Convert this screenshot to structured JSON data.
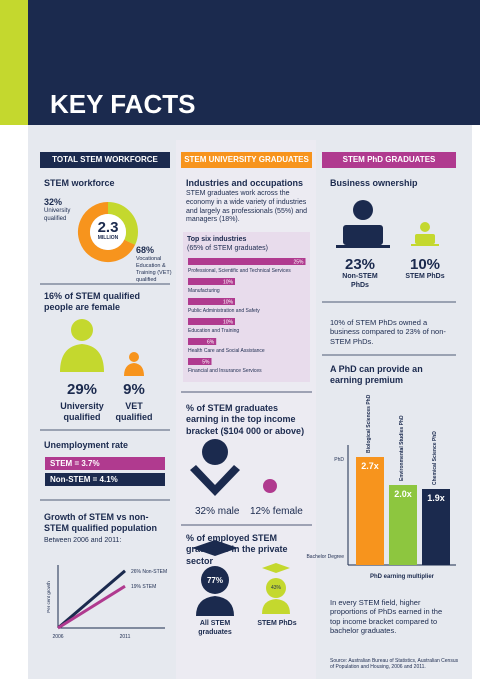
{
  "header": {
    "title": "KEY FACTS"
  },
  "workforce": {
    "heading": "TOTAL STEM WORKFORCE",
    "subheading": "STEM workforce",
    "university": {
      "value": 32,
      "label": "32%"
    },
    "university_text": "University qualified",
    "center_value": "2.3",
    "center_unit": "MILLION",
    "vet": {
      "value": 68,
      "label": "68%"
    },
    "vet_text": "Vocational Education & Training (VET) qualified"
  },
  "female": {
    "heading": "16% of STEM qualified people are female",
    "university": "29%",
    "university_text": "University qualified",
    "vet": "9%",
    "vet_text": "VET qualified"
  },
  "unemployment": {
    "heading": "Unemployment rate",
    "stem": "STEM = 3.7%",
    "non_stem": "Non-STEM = 4.1%"
  },
  "growth": {
    "heading": "Growth of STEM vs non-STEM qualified population",
    "subheading": "Between 2006 and 2011:",
    "y_label": "Per cent growth",
    "x_labels": [
      "2006",
      "2011"
    ],
    "series": [
      {
        "value": 26,
        "label": "26% Non-STEM",
        "color": "#1b2a4e"
      },
      {
        "value": 19,
        "label": "19% STEM",
        "color": "#b03a8f"
      }
    ]
  },
  "graduates": {
    "heading": "STEM UNIVERSITY GRADUATES",
    "subheading": "Industries and occupations",
    "text": "STEM graduates work across the economy in a wide variety of industries and largely as professionals (55%) and managers (18%).",
    "industries_title": "Top six industries",
    "industries_note": "(65% of STEM graduates)",
    "industries": [
      {
        "name": "Professional, Scientific and Technical Services",
        "value": 25,
        "label": "25%"
      },
      {
        "name": "Manufacturing",
        "value": 10,
        "label": "10%"
      },
      {
        "name": "Public Administration and Safety",
        "value": 10,
        "label": "10%"
      },
      {
        "name": "Education and Training",
        "value": 10,
        "label": "10%"
      },
      {
        "name": "Health Care and Social Assistance",
        "value": 6,
        "label": "6%"
      },
      {
        "name": "Financial and Insurance Services",
        "value": 5,
        "label": "5%"
      }
    ],
    "income_heading": "% of STEM graduates earning in the top income bracket ($104 000 or above)",
    "income_male": "32% male",
    "income_female": "12% female",
    "private_heading": "% of employed STEM graduates in the private sector",
    "private_all": "77%",
    "private_all_text": "All STEM graduates",
    "private_phd": "43%",
    "private_phd_text": "STEM PhDs"
  },
  "phd": {
    "heading": "STEM PhD GRADUATES",
    "subheading": "Business ownership",
    "non_stem": "23%",
    "non_stem_text": "Non-STEM PhDs",
    "stem": "10%",
    "stem_text": "STEM PhDs",
    "business_text": "10% of STEM PhDs owned a business compared to 23% of non-STEM PhDs.",
    "premium_heading": "A PhD can provide an earning premium",
    "y_top": "PhD",
    "y_bottom": "Bachelor Degree",
    "x_label": "PhD earning multiplier",
    "bars": [
      {
        "name": "Biological Sciences PhD",
        "value": 2.7,
        "label": "2.7x",
        "color": "#f7941d"
      },
      {
        "name": "Environmental Studies PhD",
        "value": 2.0,
        "label": "2.0x",
        "color": "#8dc63f"
      },
      {
        "name": "Chemical Science PhD",
        "value": 1.9,
        "label": "1.9x",
        "color": "#1b2a4e"
      }
    ],
    "premium_text": "In every STEM field, higher proportions of PhDs earned in the top income bracket compared to bachelor graduates."
  },
  "source": "Source: Australian Bureau of Statistics, Australian Census of Population and Housing, 2006 and 2011."
}
